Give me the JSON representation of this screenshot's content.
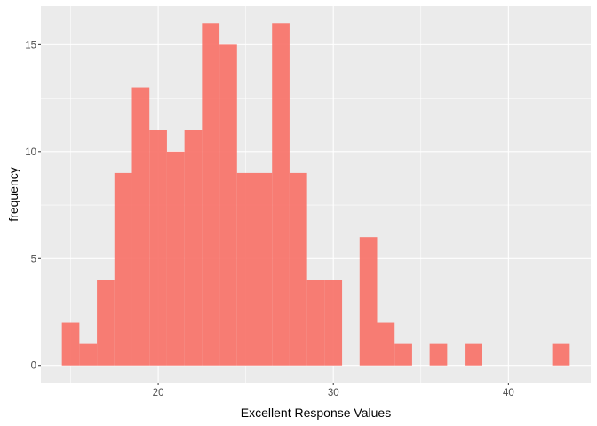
{
  "chart_data": {
    "type": "bar",
    "subtype": "histogram",
    "title": "",
    "xlabel": "Excellent Response Values",
    "ylabel": "frequency",
    "bin_width": 1,
    "bins": [
      {
        "start": 14.5,
        "end": 15.5,
        "count": 2
      },
      {
        "start": 15.5,
        "end": 16.5,
        "count": 1
      },
      {
        "start": 16.5,
        "end": 17.5,
        "count": 4
      },
      {
        "start": 17.5,
        "end": 18.5,
        "count": 9
      },
      {
        "start": 18.5,
        "end": 19.5,
        "count": 13
      },
      {
        "start": 19.5,
        "end": 20.5,
        "count": 11
      },
      {
        "start": 20.5,
        "end": 21.5,
        "count": 10
      },
      {
        "start": 21.5,
        "end": 22.5,
        "count": 11
      },
      {
        "start": 22.5,
        "end": 23.5,
        "count": 16
      },
      {
        "start": 23.5,
        "end": 24.5,
        "count": 15
      },
      {
        "start": 24.5,
        "end": 25.5,
        "count": 9
      },
      {
        "start": 25.5,
        "end": 26.5,
        "count": 9
      },
      {
        "start": 26.5,
        "end": 27.5,
        "count": 16
      },
      {
        "start": 27.5,
        "end": 28.5,
        "count": 9
      },
      {
        "start": 28.5,
        "end": 29.5,
        "count": 4
      },
      {
        "start": 29.5,
        "end": 30.5,
        "count": 4
      },
      {
        "start": 31.5,
        "end": 32.5,
        "count": 6
      },
      {
        "start": 32.5,
        "end": 33.5,
        "count": 2
      },
      {
        "start": 33.5,
        "end": 34.5,
        "count": 1
      },
      {
        "start": 35.5,
        "end": 36.5,
        "count": 1
      },
      {
        "start": 37.5,
        "end": 38.5,
        "count": 1
      },
      {
        "start": 42.5,
        "end": 43.5,
        "count": 1
      }
    ],
    "xlim": [
      13.3,
      44.7
    ],
    "ylim": [
      -0.8,
      16.8
    ],
    "x_ticks": [
      20,
      30,
      40
    ],
    "x_tick_labels": [
      "20",
      "30",
      "40"
    ],
    "y_ticks": [
      0,
      5,
      10,
      15
    ],
    "y_tick_labels": [
      "0",
      "5",
      "10",
      "15"
    ],
    "grid": true,
    "legend": "none",
    "colors": {
      "bar_fill": "#F8766D",
      "bar_opacity": 0.95,
      "panel_background": "#EBEBEB",
      "grid_major": "#FFFFFF",
      "axis_text": "#4D4D4D",
      "axis_title": "#000000"
    }
  }
}
